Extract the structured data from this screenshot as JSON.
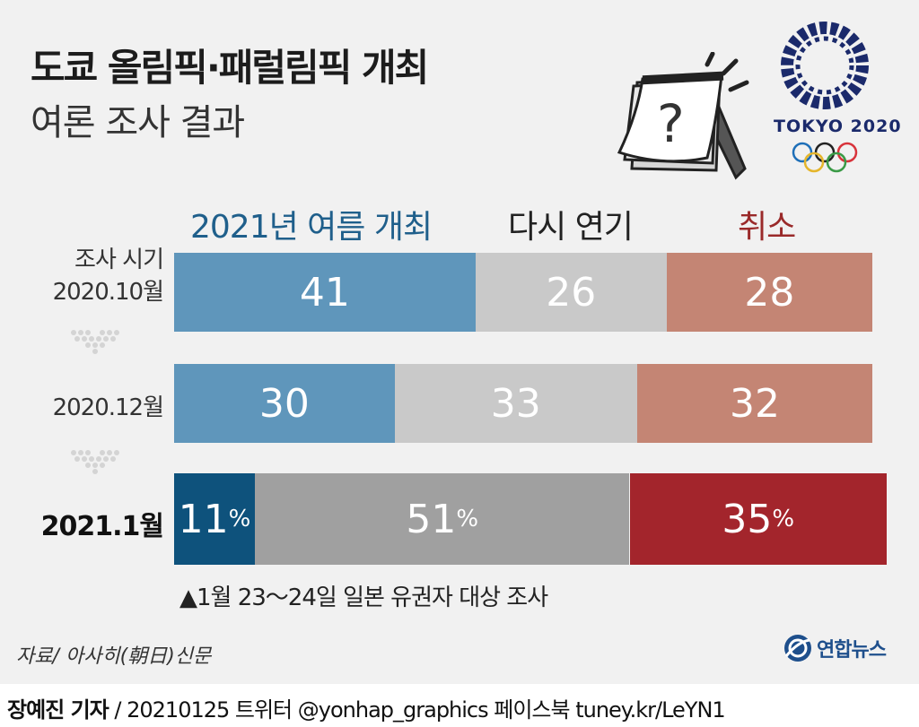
{
  "title": "도쿄 올림픽·패럴림픽 개최",
  "subtitle": "여론 조사 결과",
  "tokyo_logo_text": "TOKYO 2020",
  "chart_data": {
    "type": "bar",
    "stacked": true,
    "orientation": "horizontal",
    "title": "도쿄 올림픽·패럴림픽 개최 여론 조사 결과",
    "categories": [
      "조사 시기 2020.10월",
      "2020.12월",
      "2021.1월"
    ],
    "row_labels": [
      [
        "조사 시기",
        "2020.10월"
      ],
      [
        "2020.12월"
      ],
      [
        "2021.1월"
      ]
    ],
    "series": [
      {
        "name": "2021년 여름 개최",
        "values": [
          41,
          30,
          11
        ],
        "labels": [
          "41",
          "30",
          "11"
        ],
        "colors": [
          "#5f96bb",
          "#5f96bb",
          "#0e527c"
        ]
      },
      {
        "name": "다시 연기",
        "values": [
          26,
          33,
          51
        ],
        "labels": [
          "26",
          "33",
          "51"
        ],
        "colors": [
          "#c9c9c9",
          "#c9c9c9",
          "#a0a0a0"
        ]
      },
      {
        "name": "취소",
        "values": [
          28,
          32,
          35
        ],
        "labels": [
          "28",
          "32",
          "35"
        ],
        "colors": [
          "#c48574",
          "#c48574",
          "#a3252c"
        ]
      }
    ],
    "percent_suffix": [
      "",
      "",
      "%"
    ],
    "legend_position": "top"
  },
  "note": "▲1월 23～24일 일본 유권자 대상 조사",
  "source": "자료/ 아사히(朝日)신문",
  "agency": "연합뉴스",
  "footer": {
    "reporter": "장예진 기자",
    "rest": " / 20210125 트위터 @yonhap_graphics  페이스북 tuney.kr/LeYN1"
  }
}
